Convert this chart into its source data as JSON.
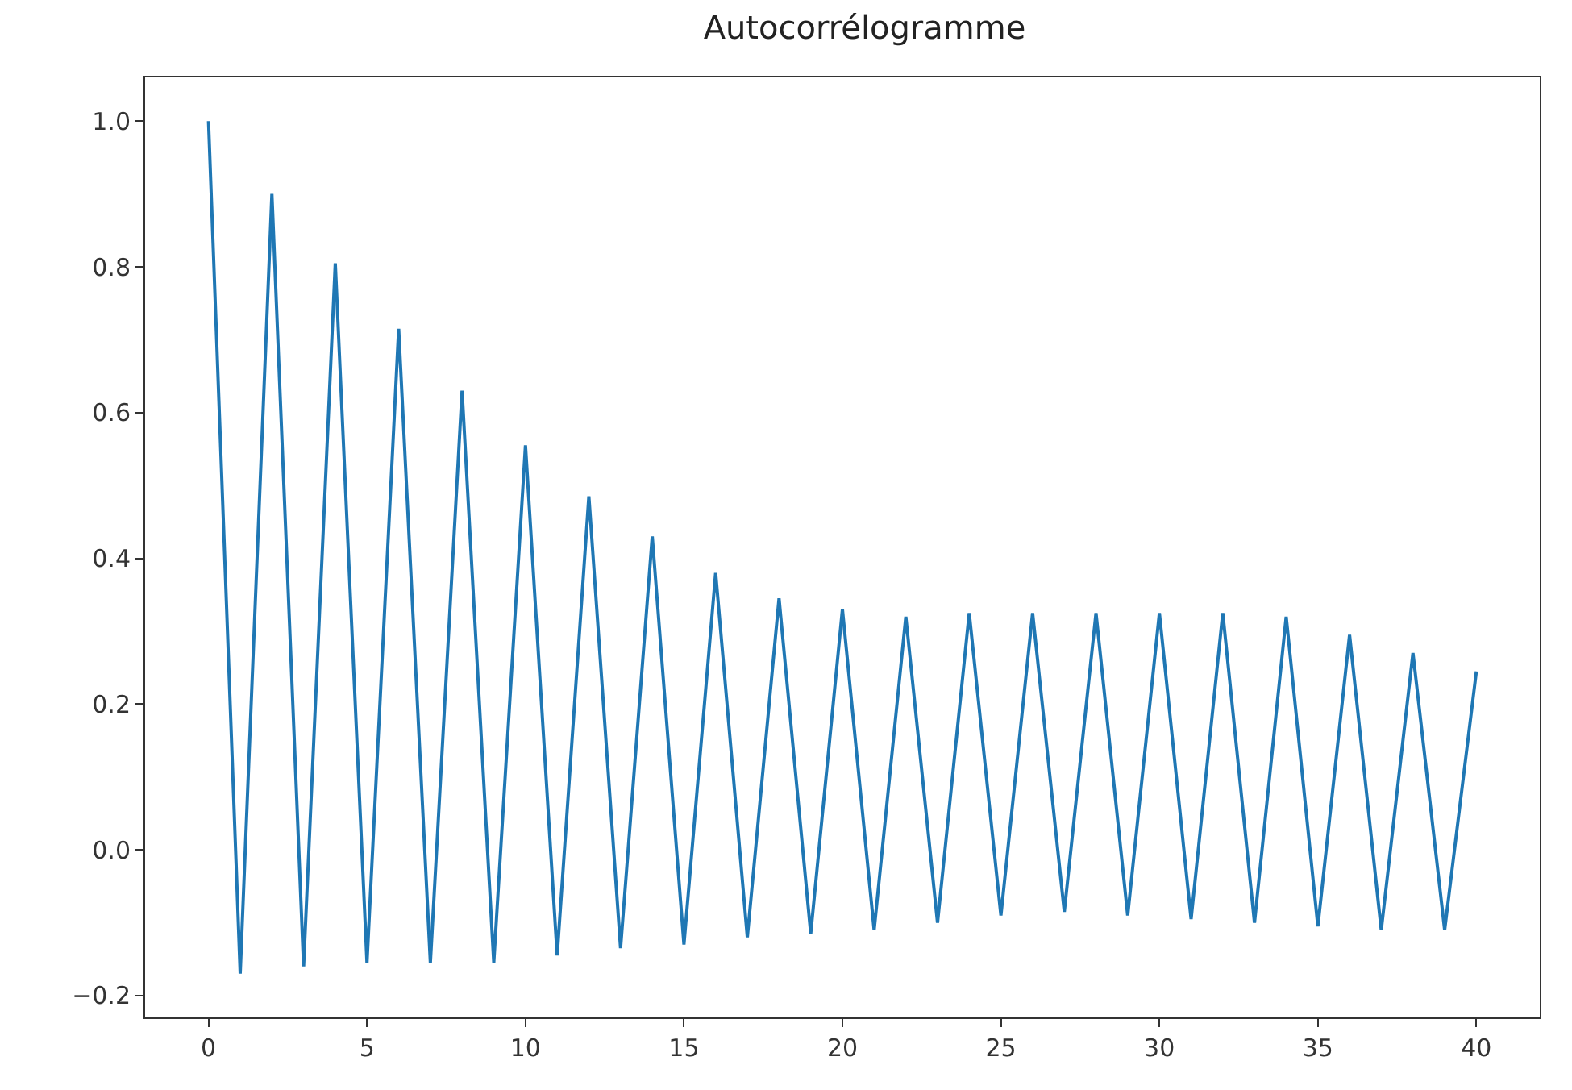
{
  "chart_data": {
    "type": "line",
    "title": "Autocorrélogramme",
    "x": [
      0,
      1,
      2,
      3,
      4,
      5,
      6,
      7,
      8,
      9,
      10,
      11,
      12,
      13,
      14,
      15,
      16,
      17,
      18,
      19,
      20,
      21,
      22,
      23,
      24,
      25,
      26,
      27,
      28,
      29,
      30,
      31,
      32,
      33,
      34,
      35,
      36,
      37,
      38,
      39,
      40
    ],
    "series": [
      {
        "color": "#1f77b4",
        "values": [
          1.0,
          -0.17,
          0.9,
          -0.16,
          0.805,
          -0.155,
          0.715,
          -0.155,
          0.63,
          -0.155,
          0.555,
          -0.145,
          0.485,
          -0.135,
          0.43,
          -0.13,
          0.38,
          -0.12,
          0.345,
          -0.115,
          0.33,
          -0.11,
          0.32,
          -0.1,
          0.325,
          -0.09,
          0.325,
          -0.085,
          0.325,
          -0.09,
          0.325,
          -0.095,
          0.325,
          -0.1,
          0.32,
          -0.105,
          0.295,
          -0.11,
          0.27,
          -0.11,
          0.245
        ]
      }
    ],
    "xlim": [
      -2,
      42
    ],
    "xticks": [
      0,
      5,
      10,
      15,
      20,
      25,
      30,
      35,
      40
    ],
    "ylim": [
      -0.23,
      1.06
    ],
    "yticks": [
      {
        "value": -0.2,
        "label": "−0.2"
      },
      {
        "value": 0.0,
        "label": "0.0"
      },
      {
        "value": 0.2,
        "label": "0.2"
      },
      {
        "value": 0.4,
        "label": "0.4"
      },
      {
        "value": 0.6,
        "label": "0.6"
      },
      {
        "value": 0.8,
        "label": "0.8"
      },
      {
        "value": 1.0,
        "label": "1.0"
      }
    ],
    "line_style": "solid"
  }
}
